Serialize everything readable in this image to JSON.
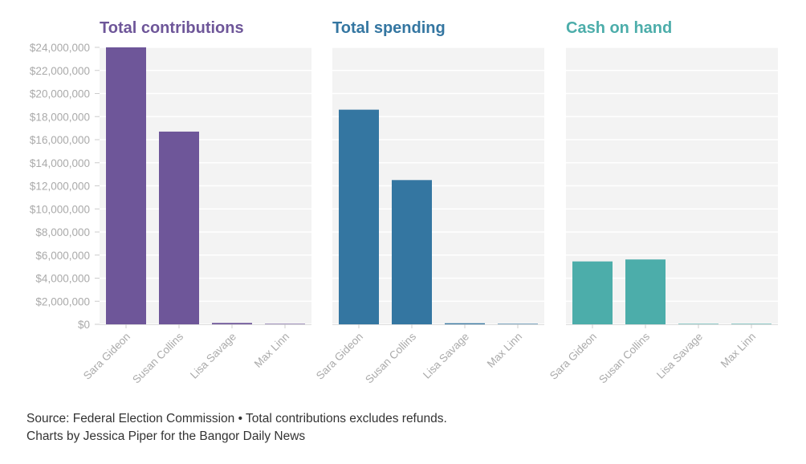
{
  "colors": {
    "contributions": "#6e5699",
    "spending": "#3476a1",
    "cash": "#4cadaa",
    "plot_bg": "#f3f3f3",
    "grid": "#ffffff",
    "tick_text": "#aaaaaa"
  },
  "chart_data": [
    {
      "type": "bar",
      "title": "Total contributions",
      "color": "#6e5699",
      "categories": [
        "Sara Gideon",
        "Susan Collins",
        "Lisa Savage",
        "Max Linn"
      ],
      "values": [
        24000000,
        16700000,
        120000,
        20000
      ],
      "ylim": [
        0,
        24000000
      ],
      "yticks": [
        0,
        2000000,
        4000000,
        6000000,
        8000000,
        10000000,
        12000000,
        14000000,
        16000000,
        18000000,
        20000000,
        22000000,
        24000000
      ],
      "ytick_labels": [
        "$0",
        "$2,000,000",
        "$4,000,000",
        "$6,000,000",
        "$8,000,000",
        "$10,000,000",
        "$12,000,000",
        "$14,000,000",
        "$16,000,000",
        "$18,000,000",
        "$20,000,000",
        "$22,000,000",
        "$24,000,000"
      ],
      "xlabel": "",
      "ylabel": ""
    },
    {
      "type": "bar",
      "title": "Total spending",
      "color": "#3476a1",
      "categories": [
        "Sara Gideon",
        "Susan Collins",
        "Lisa Savage",
        "Max Linn"
      ],
      "values": [
        18600000,
        12500000,
        90000,
        15000
      ],
      "ylim": [
        0,
        24000000
      ],
      "xlabel": "",
      "ylabel": ""
    },
    {
      "type": "bar",
      "title": "Cash on hand",
      "color": "#4cadaa",
      "categories": [
        "Sara Gideon",
        "Susan Collins",
        "Lisa Savage",
        "Max Linn"
      ],
      "values": [
        5450000,
        5620000,
        30000,
        5000
      ],
      "ylim": [
        0,
        24000000
      ],
      "xlabel": "",
      "ylabel": ""
    }
  ],
  "footer": {
    "source": "Source: Federal Election Commission • Total contributions excludes refunds.",
    "credit": "Charts by Jessica Piper for the Bangor Daily News"
  }
}
